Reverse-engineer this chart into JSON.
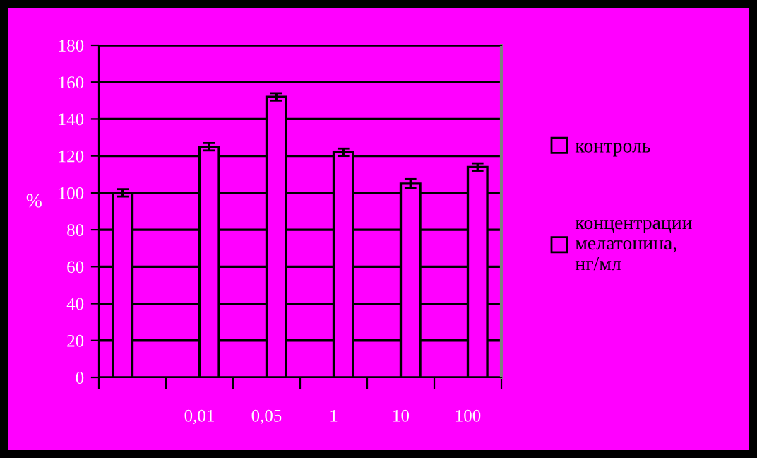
{
  "chart_data": {
    "type": "bar",
    "ylabel": "%",
    "categories": [
      null,
      "0,01",
      "0,05",
      "1",
      "10",
      "100"
    ],
    "series": [
      {
        "name": "контроль",
        "color": "#ff00ff",
        "values": [
          100,
          null,
          null,
          null,
          null,
          null
        ],
        "errors": [
          2,
          null,
          null,
          null,
          null,
          null
        ]
      },
      {
        "name": "концентрации\nмелатонина,\nнг/мл",
        "color": "#ff00ff",
        "values": [
          null,
          125,
          152,
          122,
          105,
          114
        ],
        "errors": [
          null,
          2,
          2,
          2,
          2.5,
          2
        ]
      }
    ],
    "ylim": [
      0,
      180
    ],
    "yticks": [
      0,
      20,
      40,
      60,
      80,
      100,
      120,
      140,
      160,
      180
    ],
    "grid": "y",
    "legend": "right"
  }
}
